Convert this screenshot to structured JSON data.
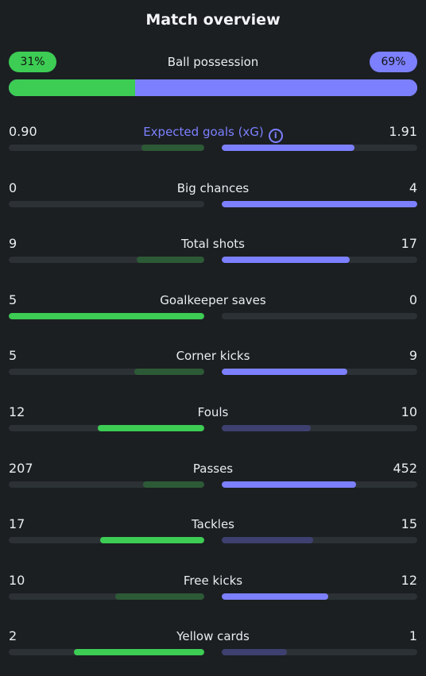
{
  "title": "Match overview",
  "possession": {
    "label": "Ball possession",
    "home": "31%",
    "away": "69%",
    "home_value": 31,
    "away_value": 69
  },
  "colors": {
    "home_strong": "#3dcc54",
    "home_weak": "#2d5a36",
    "away_strong": "#7c80ff",
    "away_weak": "#3e4170",
    "track": "#2c3135"
  },
  "stats": [
    {
      "label": "Expected goals (xG)",
      "home": "0.90",
      "away": "1.91",
      "home_val": 0.9,
      "away_val": 1.91,
      "info": true
    },
    {
      "label": "Big chances",
      "home": "0",
      "away": "4",
      "home_val": 0,
      "away_val": 4
    },
    {
      "label": "Total shots",
      "home": "9",
      "away": "17",
      "home_val": 9,
      "away_val": 17
    },
    {
      "label": "Goalkeeper saves",
      "home": "5",
      "away": "0",
      "home_val": 5,
      "away_val": 0
    },
    {
      "label": "Corner kicks",
      "home": "5",
      "away": "9",
      "home_val": 5,
      "away_val": 9
    },
    {
      "label": "Fouls",
      "home": "12",
      "away": "10",
      "home_val": 12,
      "away_val": 10
    },
    {
      "label": "Passes",
      "home": "207",
      "away": "452",
      "home_val": 207,
      "away_val": 452
    },
    {
      "label": "Tackles",
      "home": "17",
      "away": "15",
      "home_val": 17,
      "away_val": 15
    },
    {
      "label": "Free kicks",
      "home": "10",
      "away": "12",
      "home_val": 10,
      "away_val": 12
    },
    {
      "label": "Yellow cards",
      "home": "2",
      "away": "1",
      "home_val": 2,
      "away_val": 1
    }
  ]
}
